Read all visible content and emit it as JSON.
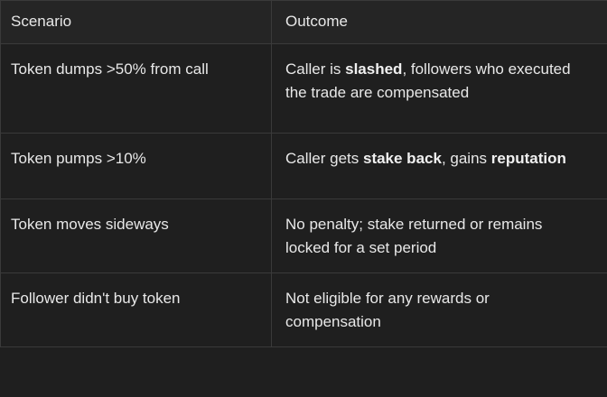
{
  "table": {
    "headers": [
      "Scenario",
      "Outcome"
    ],
    "rows": [
      {
        "scenario": "Token dumps >50% from call",
        "outcome": [
          {
            "text": "Caller is "
          },
          {
            "text": "slashed",
            "bold": true
          },
          {
            "text": ", followers who executed the trade are compensated"
          }
        ]
      },
      {
        "scenario": "Token pumps >10%",
        "outcome": [
          {
            "text": "Caller gets "
          },
          {
            "text": "stake back",
            "bold": true
          },
          {
            "text": ", gains "
          },
          {
            "text": "reputation",
            "bold": true
          }
        ]
      },
      {
        "scenario": "Token moves sideways",
        "outcome": [
          {
            "text": "No penalty; stake returned or remains locked for a set period"
          }
        ]
      },
      {
        "scenario": "Follower didn't buy token",
        "outcome": [
          {
            "text": "Not eligible for any rewards or compensation"
          }
        ]
      }
    ]
  }
}
